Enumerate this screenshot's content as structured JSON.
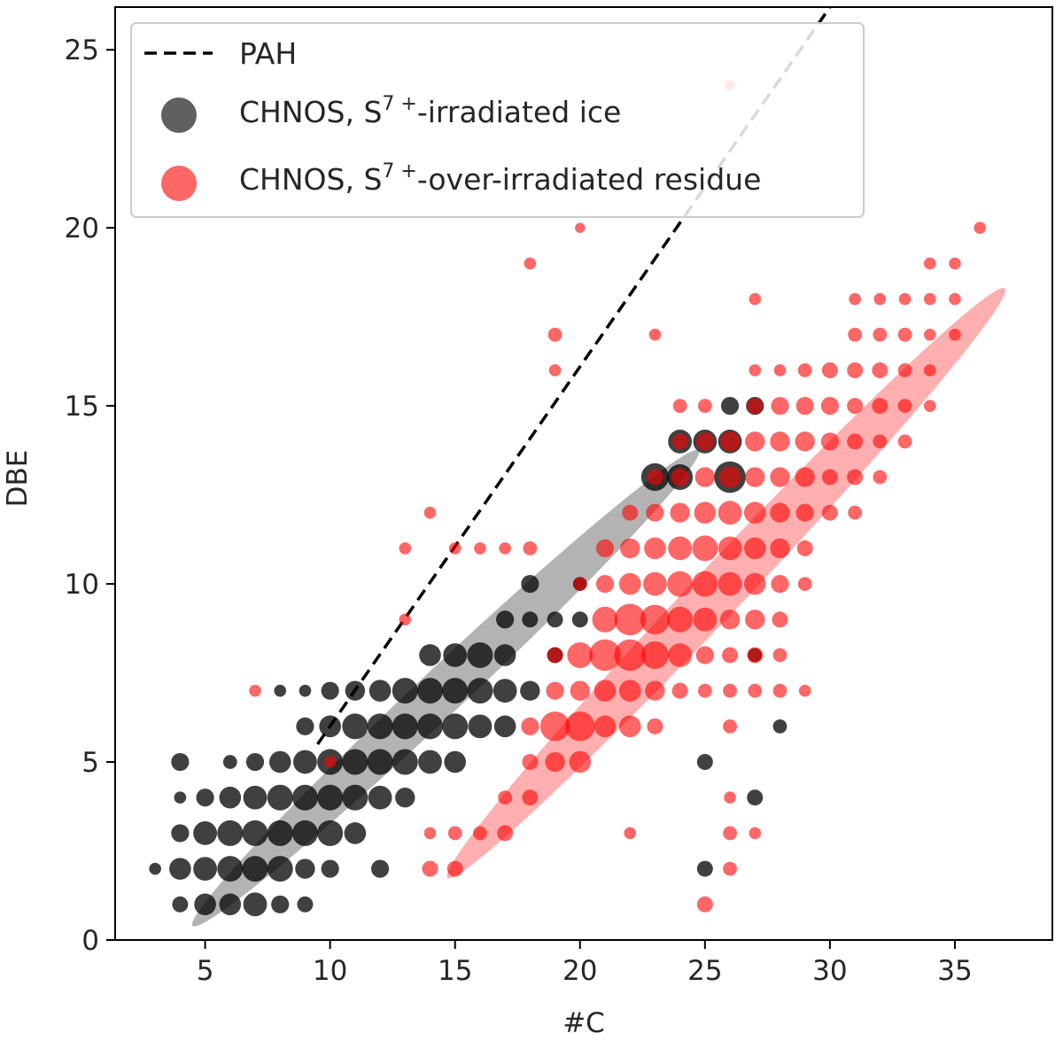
{
  "chart_data": {
    "type": "scatter",
    "xlabel": "#C",
    "ylabel": "DBE",
    "xlim": [
      1.4,
      38.9
    ],
    "ylim": [
      0,
      26.2
    ],
    "xticks": [
      5,
      10,
      15,
      20,
      25,
      30,
      35
    ],
    "yticks": [
      0,
      5,
      10,
      15,
      20,
      25
    ],
    "grid": false,
    "legend_placement": "top-left",
    "legend": [
      {
        "key": "pah",
        "label": "PAH",
        "marker": "dashed-line",
        "color": "#000000"
      },
      {
        "key": "ice",
        "label_pre": "CHNOS, S",
        "label_sup": "7 +",
        "label_post": "-irradiated ice",
        "marker": "circle",
        "color": "#606060"
      },
      {
        "key": "residue",
        "label_pre": "CHNOS, S",
        "label_sup": "7 +",
        "label_post": "-over-irradiated residue",
        "marker": "circle",
        "color": "#ff6666"
      }
    ],
    "pah_line": {
      "x": [
        9.5,
        30
      ],
      "y": [
        5.5,
        26.2
      ],
      "color": "#000000",
      "style": "dashed"
    },
    "ellipses": [
      {
        "name": "ice",
        "polygon": [
          [
            3.7,
            0.7
          ],
          [
            23.7,
            14
          ],
          [
            25.8,
            13.5
          ],
          [
            5.3,
            0.1
          ]
        ],
        "color": "#808080",
        "opacity": 0.6
      },
      {
        "name": "residue",
        "polygon": [
          [
            13.9,
            2.2
          ],
          [
            36.6,
            19
          ],
          [
            37.4,
            17.6
          ],
          [
            15.5,
            1.3
          ]
        ],
        "color": "#ff4d4d",
        "opacity": 0.45
      }
    ],
    "series": [
      {
        "name": "CHNOS, S7+-irradiated ice",
        "color": "#000000",
        "points": [
          [
            3,
            2,
            0.3
          ],
          [
            4,
            1,
            0.5
          ],
          [
            4,
            2,
            0.8
          ],
          [
            4,
            3,
            0.6
          ],
          [
            4,
            4,
            0.3
          ],
          [
            4,
            5,
            0.6
          ],
          [
            5,
            1,
            0.8
          ],
          [
            5,
            2,
            0.9
          ],
          [
            5,
            3,
            0.9
          ],
          [
            5,
            4,
            0.6
          ],
          [
            6,
            1,
            0.8
          ],
          [
            6,
            2,
            1.0
          ],
          [
            6,
            3,
            1.0
          ],
          [
            6,
            4,
            0.8
          ],
          [
            6,
            5,
            0.4
          ],
          [
            7,
            1,
            0.9
          ],
          [
            7,
            2,
            1.0
          ],
          [
            7,
            3,
            1.0
          ],
          [
            7,
            4,
            0.9
          ],
          [
            7,
            5,
            0.6
          ],
          [
            8,
            1,
            0.6
          ],
          [
            8,
            2,
            1.0
          ],
          [
            8,
            3,
            1.0
          ],
          [
            8,
            4,
            1.0
          ],
          [
            8,
            5,
            0.8
          ],
          [
            8,
            7,
            0.3
          ],
          [
            9,
            1,
            0.5
          ],
          [
            9,
            2,
            0.7
          ],
          [
            9,
            3,
            1.0
          ],
          [
            9,
            4,
            1.0
          ],
          [
            9,
            5,
            0.9
          ],
          [
            9,
            6,
            0.6
          ],
          [
            9,
            7,
            0.3
          ],
          [
            10,
            2,
            0.6
          ],
          [
            10,
            3,
            1.0
          ],
          [
            10,
            4,
            1.0
          ],
          [
            10,
            5,
            1.0
          ],
          [
            10,
            6,
            0.8
          ],
          [
            10,
            7,
            0.6
          ],
          [
            11,
            3,
            0.8
          ],
          [
            11,
            4,
            1.0
          ],
          [
            11,
            5,
            1.0
          ],
          [
            11,
            6,
            1.0
          ],
          [
            11,
            7,
            0.7
          ],
          [
            12,
            2,
            0.6
          ],
          [
            12,
            4,
            0.9
          ],
          [
            12,
            5,
            1.0
          ],
          [
            12,
            6,
            1.0
          ],
          [
            12,
            7,
            0.8
          ],
          [
            13,
            4,
            0.7
          ],
          [
            13,
            5,
            1.0
          ],
          [
            13,
            6,
            1.0
          ],
          [
            13,
            7,
            1.0
          ],
          [
            14,
            5,
            0.9
          ],
          [
            14,
            6,
            1.0
          ],
          [
            14,
            7,
            1.0
          ],
          [
            14,
            8,
            0.8
          ],
          [
            15,
            5,
            0.8
          ],
          [
            15,
            6,
            1.0
          ],
          [
            15,
            7,
            1.0
          ],
          [
            15,
            8,
            0.9
          ],
          [
            16,
            6,
            0.9
          ],
          [
            16,
            7,
            1.0
          ],
          [
            16,
            8,
            1.0
          ],
          [
            17,
            6,
            0.8
          ],
          [
            17,
            7,
            0.9
          ],
          [
            17,
            8,
            0.8
          ],
          [
            17,
            9,
            0.6
          ],
          [
            18,
            7,
            0.7
          ],
          [
            18,
            9,
            0.5
          ],
          [
            18,
            10,
            0.6
          ],
          [
            19,
            8,
            0.5
          ],
          [
            19,
            9,
            0.5
          ],
          [
            20,
            9,
            0.5
          ],
          [
            20,
            10,
            0.4
          ],
          [
            23,
            13,
            1.1
          ],
          [
            24,
            13,
            1.0
          ],
          [
            24,
            14,
            0.9
          ],
          [
            25,
            14,
            0.9
          ],
          [
            25,
            5,
            0.5
          ],
          [
            25,
            2,
            0.5
          ],
          [
            26,
            13,
            1.3
          ],
          [
            26,
            14,
            0.9
          ],
          [
            26,
            15,
            0.6
          ],
          [
            27,
            15,
            0.6
          ],
          [
            27,
            4,
            0.5
          ],
          [
            27,
            8,
            0.4
          ],
          [
            28,
            6,
            0.4
          ]
        ]
      },
      {
        "name": "CHNOS, S7+-over-irradiated residue",
        "color": "#ff0000",
        "points": [
          [
            7,
            7,
            0.3
          ],
          [
            10,
            5,
            0.3
          ],
          [
            14,
            2,
            0.5
          ],
          [
            14,
            3,
            0.3
          ],
          [
            14,
            12,
            0.3
          ],
          [
            13,
            11,
            0.3
          ],
          [
            13,
            9,
            0.3
          ],
          [
            15,
            2,
            0.5
          ],
          [
            15,
            3,
            0.4
          ],
          [
            15,
            11,
            0.3
          ],
          [
            16,
            3,
            0.4
          ],
          [
            16,
            11,
            0.3
          ],
          [
            17,
            3,
            0.5
          ],
          [
            17,
            4,
            0.4
          ],
          [
            17,
            11,
            0.3
          ],
          [
            18,
            4,
            0.5
          ],
          [
            18,
            5,
            0.5
          ],
          [
            18,
            6,
            0.6
          ],
          [
            18,
            11,
            0.4
          ],
          [
            18,
            19,
            0.3
          ],
          [
            19,
            5,
            0.7
          ],
          [
            19,
            6,
            1.2
          ],
          [
            19,
            7,
            0.6
          ],
          [
            19,
            8,
            0.5
          ],
          [
            19,
            16,
            0.3
          ],
          [
            19,
            17,
            0.4
          ],
          [
            20,
            5,
            0.8
          ],
          [
            20,
            6,
            1.2
          ],
          [
            20,
            7,
            0.7
          ],
          [
            20,
            8,
            1.0
          ],
          [
            20,
            10,
            0.4
          ],
          [
            21,
            6,
            0.8
          ],
          [
            21,
            7,
            0.8
          ],
          [
            21,
            8,
            1.3
          ],
          [
            21,
            9,
            1.0
          ],
          [
            21,
            10,
            0.6
          ],
          [
            21,
            11,
            0.6
          ],
          [
            22,
            6,
            0.8
          ],
          [
            22,
            7,
            0.8
          ],
          [
            22,
            8,
            1.3
          ],
          [
            22,
            9,
            1.3
          ],
          [
            22,
            10,
            0.8
          ],
          [
            22,
            11,
            0.7
          ],
          [
            22,
            12,
            0.5
          ],
          [
            22,
            3,
            0.3
          ],
          [
            23,
            6,
            0.5
          ],
          [
            23,
            7,
            0.7
          ],
          [
            23,
            8,
            1.1
          ],
          [
            23,
            9,
            1.2
          ],
          [
            23,
            10,
            0.9
          ],
          [
            23,
            11,
            0.8
          ],
          [
            23,
            12,
            0.6
          ],
          [
            23,
            13,
            0.5
          ],
          [
            23,
            17,
            0.3
          ],
          [
            24,
            7,
            0.5
          ],
          [
            24,
            8,
            0.9
          ],
          [
            24,
            9,
            1.0
          ],
          [
            24,
            10,
            1.0
          ],
          [
            24,
            11,
            0.9
          ],
          [
            24,
            12,
            0.7
          ],
          [
            24,
            13,
            0.6
          ],
          [
            24,
            14,
            0.5
          ],
          [
            24,
            15,
            0.4
          ],
          [
            25,
            7,
            0.4
          ],
          [
            25,
            8,
            0.6
          ],
          [
            25,
            9,
            0.9
          ],
          [
            25,
            10,
            1.0
          ],
          [
            25,
            11,
            1.0
          ],
          [
            25,
            12,
            0.8
          ],
          [
            25,
            13,
            0.7
          ],
          [
            25,
            14,
            0.6
          ],
          [
            25,
            15,
            0.4
          ],
          [
            25,
            1,
            0.5
          ],
          [
            26,
            6,
            0.4
          ],
          [
            26,
            7,
            0.4
          ],
          [
            26,
            8,
            0.5
          ],
          [
            26,
            9,
            0.7
          ],
          [
            26,
            10,
            0.9
          ],
          [
            26,
            11,
            0.9
          ],
          [
            26,
            12,
            0.9
          ],
          [
            26,
            13,
            0.8
          ],
          [
            26,
            14,
            0.7
          ],
          [
            26,
            3,
            0.4
          ],
          [
            26,
            2,
            0.4
          ],
          [
            26,
            4,
            0.3
          ],
          [
            27,
            7,
            0.4
          ],
          [
            27,
            8,
            0.5
          ],
          [
            27,
            9,
            0.7
          ],
          [
            27,
            10,
            0.8
          ],
          [
            27,
            11,
            0.8
          ],
          [
            27,
            12,
            0.8
          ],
          [
            27,
            13,
            0.7
          ],
          [
            27,
            14,
            0.7
          ],
          [
            27,
            15,
            0.5
          ],
          [
            27,
            16,
            0.3
          ],
          [
            27,
            18,
            0.3
          ],
          [
            27,
            3,
            0.3
          ],
          [
            28,
            7,
            0.4
          ],
          [
            28,
            8,
            0.4
          ],
          [
            28,
            9,
            0.5
          ],
          [
            28,
            10,
            0.6
          ],
          [
            28,
            11,
            0.7
          ],
          [
            28,
            12,
            0.7
          ],
          [
            28,
            13,
            0.7
          ],
          [
            28,
            14,
            0.7
          ],
          [
            28,
            15,
            0.6
          ],
          [
            28,
            16,
            0.3
          ],
          [
            29,
            7,
            0.3
          ],
          [
            29,
            10,
            0.4
          ],
          [
            29,
            11,
            0.5
          ],
          [
            29,
            12,
            0.6
          ],
          [
            29,
            13,
            0.7
          ],
          [
            29,
            14,
            0.7
          ],
          [
            29,
            15,
            0.6
          ],
          [
            29,
            16,
            0.4
          ],
          [
            30,
            12,
            0.5
          ],
          [
            30,
            13,
            0.5
          ],
          [
            30,
            14,
            0.6
          ],
          [
            30,
            15,
            0.6
          ],
          [
            30,
            16,
            0.5
          ],
          [
            31,
            12,
            0.4
          ],
          [
            31,
            13,
            0.5
          ],
          [
            31,
            14,
            0.5
          ],
          [
            31,
            15,
            0.5
          ],
          [
            31,
            16,
            0.5
          ],
          [
            31,
            17,
            0.4
          ],
          [
            31,
            18,
            0.3
          ],
          [
            32,
            13,
            0.4
          ],
          [
            32,
            14,
            0.4
          ],
          [
            32,
            15,
            0.5
          ],
          [
            32,
            16,
            0.5
          ],
          [
            32,
            17,
            0.4
          ],
          [
            32,
            18,
            0.3
          ],
          [
            33,
            14,
            0.4
          ],
          [
            33,
            15,
            0.4
          ],
          [
            33,
            16,
            0.4
          ],
          [
            33,
            17,
            0.4
          ],
          [
            33,
            18,
            0.3
          ],
          [
            34,
            15,
            0.3
          ],
          [
            34,
            16,
            0.3
          ],
          [
            34,
            17,
            0.3
          ],
          [
            34,
            18,
            0.3
          ],
          [
            34,
            19,
            0.3
          ],
          [
            35,
            17,
            0.3
          ],
          [
            35,
            18,
            0.3
          ],
          [
            35,
            19,
            0.3
          ],
          [
            36,
            20,
            0.3
          ],
          [
            26,
            24,
            0.2
          ],
          [
            20,
            20,
            0.2
          ]
        ]
      }
    ]
  }
}
